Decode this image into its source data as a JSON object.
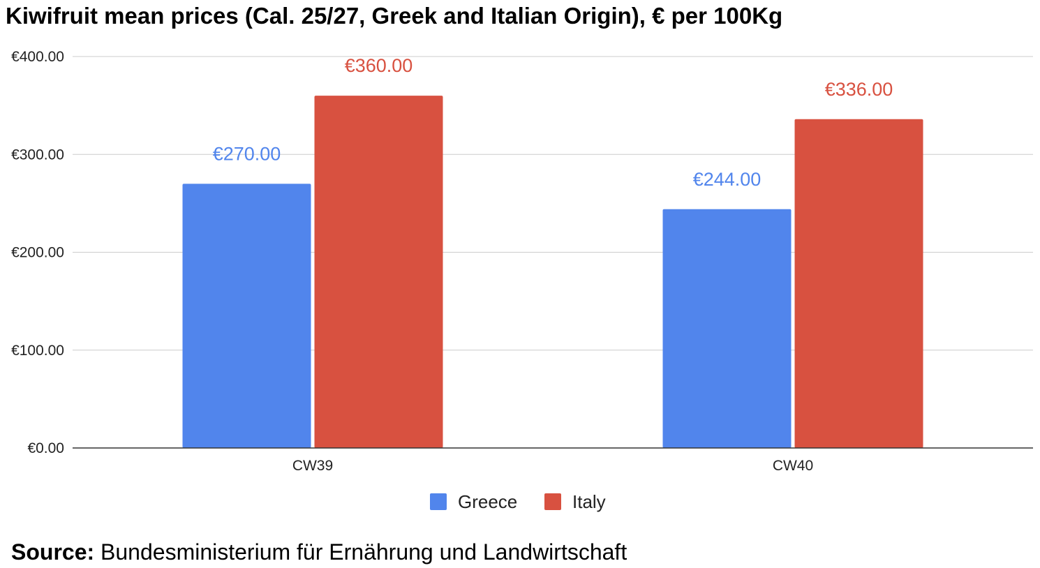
{
  "source": {
    "label": "Source:",
    "text": " Bundesministerium für Ernährung und Landwirtschaft"
  },
  "chart_data": {
    "type": "bar",
    "title": "Kiwifruit mean prices (Cal. 25/27, Greek and Italian Origin), € per 100Kg",
    "categories": [
      "CW39",
      "CW40"
    ],
    "series": [
      {
        "name": "Greece",
        "color": "#5185EC",
        "values": [
          270,
          244
        ],
        "labels": [
          "€270.00",
          "€244.00"
        ]
      },
      {
        "name": "Italy",
        "color": "#D85140",
        "values": [
          360,
          336
        ],
        "labels": [
          "€360.00",
          "€336.00"
        ]
      }
    ],
    "ylim": [
      0,
      400
    ],
    "yticks": [
      {
        "value": 0,
        "label": "€0.00"
      },
      {
        "value": 100,
        "label": "€100.00"
      },
      {
        "value": 200,
        "label": "€200.00"
      },
      {
        "value": 300,
        "label": "€300.00"
      },
      {
        "value": 400,
        "label": "€400.00"
      }
    ],
    "xlabel": "",
    "ylabel": "",
    "grid": true,
    "legend_position": "bottom"
  }
}
